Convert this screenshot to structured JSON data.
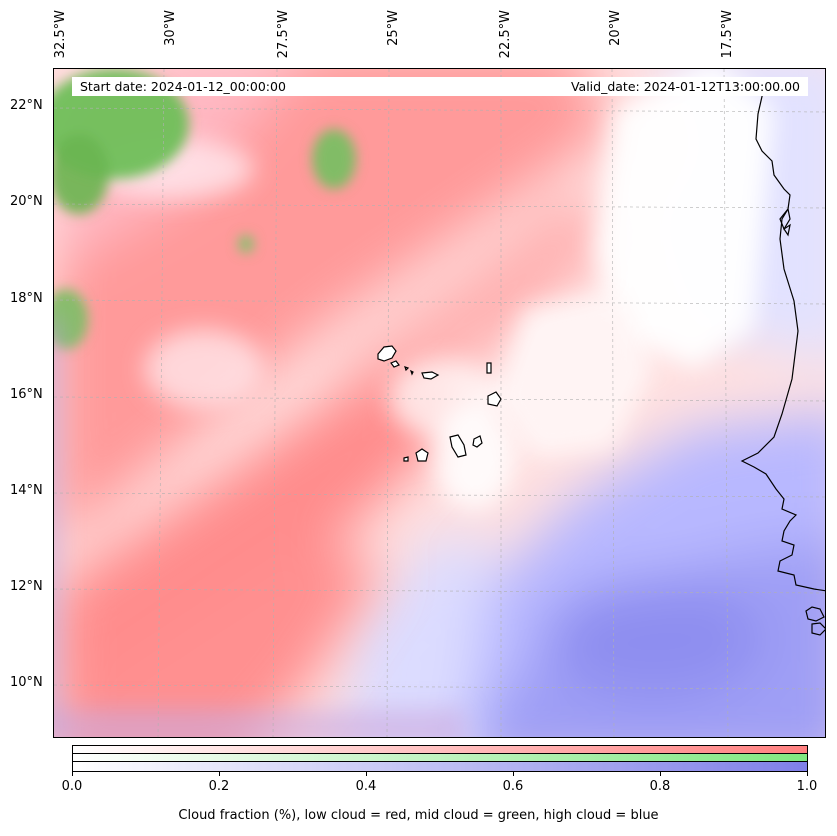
{
  "map": {
    "start_date": "Start date: 2024-01-12_00:00:00",
    "valid_date": "Valid_date: 2024-01-12T13:00:00.00",
    "longitude_labels": [
      "32.5°W",
      "30°W",
      "27.5°W",
      "25°W",
      "22.5°W",
      "20°W",
      "17.5°W"
    ],
    "latitude_labels": [
      "22°N",
      "20°N",
      "18°N",
      "16°N",
      "14°N",
      "12°N",
      "10°N"
    ],
    "colors": {
      "low_cloud": "#ff8080",
      "mid_cloud": "#80e880",
      "high_cloud": "#7f7fe8",
      "coastline": "#000000"
    },
    "features": [
      "cloud-field",
      "gridlines",
      "cape-verde-islands",
      "west-africa-coastline"
    ]
  },
  "colorbar": {
    "tick_labels": [
      "0.0",
      "0.2",
      "0.4",
      "0.6",
      "0.8",
      "1.0"
    ],
    "caption": "Cloud fraction (%), low cloud = red, mid cloud = green, high cloud = blue"
  }
}
